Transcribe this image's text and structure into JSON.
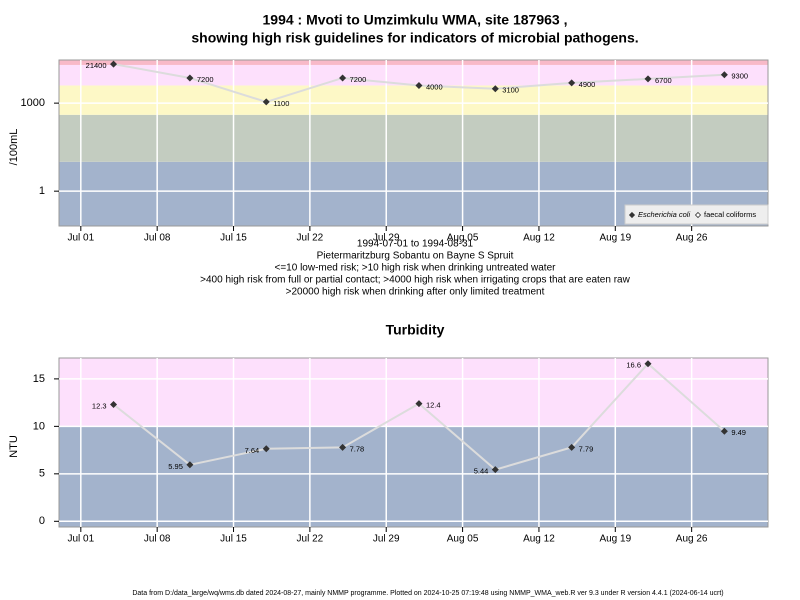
{
  "chart_data": [
    {
      "type": "line",
      "title": [
        "1994 : Mvoti to Umzimkulu WMA, site 187963 ,",
        "showing high risk guidelines for indicators of microbial pathogens."
      ],
      "ylabel": "/100mL",
      "notes": [
        "1994-07-01 to 1994-08-31",
        "Pietermaritzburg Sobantu on Bayne S Spruit",
        "<=10 low-med risk; >10 high risk when drinking untreated water",
        ">400 high risk from full or partial contact; >4000 high risk when irrigating crops that are eaten raw",
        ">20000 high risk when drinking after only limited treatment"
      ],
      "log_scale": true,
      "x": [
        "1994-07-04",
        "1994-07-11",
        "1994-07-18",
        "1994-07-25",
        "1994-08-01",
        "1994-08-08",
        "1994-08-15",
        "1994-08-22",
        "1994-08-29"
      ],
      "series": [
        {
          "name": "Escherichia coli",
          "color": "#333333",
          "values": [
            21400,
            7200,
            1100,
            7200,
            4000,
            3100,
            4900,
            6700,
            9300
          ]
        }
      ],
      "legend": [
        {
          "name": "Escherichia coli",
          "marker": "filled"
        },
        {
          "name": "faecal coliforms",
          "marker": "open"
        }
      ],
      "xlim": [
        "1994-06-29",
        "1994-09-02"
      ],
      "xticks": [
        {
          "value": "1994-07-01",
          "label": "Jul 01"
        },
        {
          "value": "1994-07-08",
          "label": "Jul 08"
        },
        {
          "value": "1994-07-15",
          "label": "Jul 15"
        },
        {
          "value": "1994-07-22",
          "label": "Jul 22"
        },
        {
          "value": "1994-07-29",
          "label": "Jul 29"
        },
        {
          "value": "1994-08-05",
          "label": "Aug 05"
        },
        {
          "value": "1994-08-12",
          "label": "Aug 12"
        },
        {
          "value": "1994-08-19",
          "label": "Aug 19"
        },
        {
          "value": "1994-08-26",
          "label": "Aug 26"
        }
      ],
      "ylim": [
        0.065,
        29500
      ],
      "yticks": [
        1,
        1000
      ],
      "thresholds": [
        10,
        400,
        4000,
        20000
      ],
      "band_colors": [
        "#a3b3cc",
        "#c3ccc0",
        "#fdf8c6",
        "#fde0fc",
        "#f8b9c8"
      ],
      "grid": true
    },
    {
      "type": "line",
      "title": "Turbidity",
      "ylabel": "NTU",
      "x": [
        "1994-07-04",
        "1994-07-11",
        "1994-07-18",
        "1994-07-25",
        "1994-08-01",
        "1994-08-08",
        "1994-08-15",
        "1994-08-22",
        "1994-08-29"
      ],
      "series": [
        {
          "name": "Turbidity",
          "color": "#333333",
          "values": [
            12.3,
            5.95,
            7.64,
            7.78,
            12.4,
            5.44,
            7.79,
            16.6,
            9.49
          ]
        }
      ],
      "xlim": [
        "1994-06-29",
        "1994-09-02"
      ],
      "xticks": [
        {
          "value": "1994-07-01",
          "label": "Jul 01"
        },
        {
          "value": "1994-07-08",
          "label": "Jul 08"
        },
        {
          "value": "1994-07-15",
          "label": "Jul 15"
        },
        {
          "value": "1994-07-22",
          "label": "Jul 22"
        },
        {
          "value": "1994-07-29",
          "label": "Jul 29"
        },
        {
          "value": "1994-08-05",
          "label": "Aug 05"
        },
        {
          "value": "1994-08-12",
          "label": "Aug 12"
        },
        {
          "value": "1994-08-19",
          "label": "Aug 19"
        },
        {
          "value": "1994-08-26",
          "label": "Aug 26"
        }
      ],
      "ylim": [
        -0.6,
        17.2
      ],
      "yticks": [
        0,
        5,
        10,
        15
      ],
      "thresholds": [
        10
      ],
      "band_colors": [
        "#a3b3cc",
        "#fde0fc"
      ],
      "grid": true
    }
  ],
  "footer": "Data from D:/data_large/wq/wms.db dated 2024-08-27, mainly NMMP programme. Plotted on 2024-10-25 07:19:48 using NMMP_WMA_web.R ver 9.3 under R version 4.4.1 (2024-06-14 ucrt)"
}
